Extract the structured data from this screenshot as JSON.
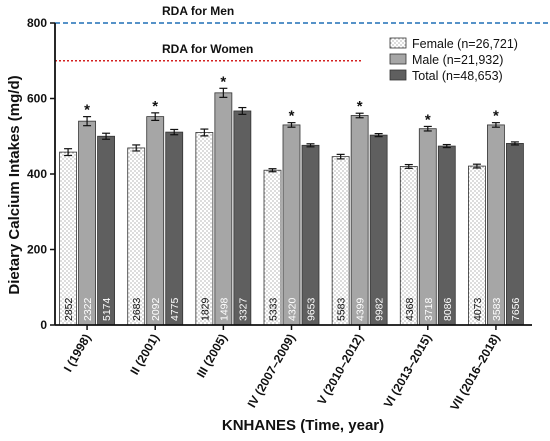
{
  "chart_data": {
    "type": "bar",
    "title": "",
    "ylabel": "Dietary Calcium Intakes (mg/d)",
    "xlabel": "KNHANES (Time, year)",
    "ylim": [
      0,
      800
    ],
    "yticks": [
      0,
      200,
      400,
      600,
      800
    ],
    "categories": [
      "I (1998)",
      "II (2001)",
      "III (2005)",
      "IV (2007–2009)",
      "V (2010–2012)",
      "VI (2013–2015)",
      "VII (2016–2018)"
    ],
    "series": [
      {
        "name": "Female (n=26,721)",
        "pattern": "dotted",
        "color": "#ffffff",
        "values": [
          458,
          469,
          510,
          410,
          446,
          420,
          421
        ],
        "errors": [
          9,
          8,
          9,
          4,
          6,
          5,
          5
        ],
        "counts": [
          "2852",
          "2683",
          "1829",
          "5333",
          "5583",
          "4368",
          "4073"
        ]
      },
      {
        "name": "Male (n=21,932)",
        "color": "#a6a6a6",
        "values": [
          540,
          552,
          615,
          530,
          555,
          520,
          530
        ],
        "errors": [
          12,
          10,
          12,
          6,
          6,
          6,
          6
        ],
        "counts": [
          "2322",
          "2092",
          "1498",
          "4320",
          "4399",
          "3718",
          "3583"
        ]
      },
      {
        "name": "Total (n=48,653)",
        "color": "#5f5f5f",
        "values": [
          500,
          511,
          567,
          476,
          503,
          474,
          481
        ],
        "errors": [
          8,
          7,
          9,
          4,
          4,
          4,
          4
        ],
        "counts": [
          "5174",
          "4775",
          "3327",
          "9653",
          "9982",
          "8086",
          "7656"
        ]
      }
    ],
    "significance_marker": "*",
    "significance_categories": [
      0,
      1,
      2,
      3,
      4,
      5,
      6
    ],
    "reference_lines": [
      {
        "label": "RDA for Men",
        "value": 800,
        "style": "dashed",
        "color": "#1f6fb5"
      },
      {
        "label": "RDA for Women",
        "value": 700,
        "style": "dotted",
        "color": "#d42020"
      }
    ],
    "legend_position": "top-right",
    "grid": false
  }
}
